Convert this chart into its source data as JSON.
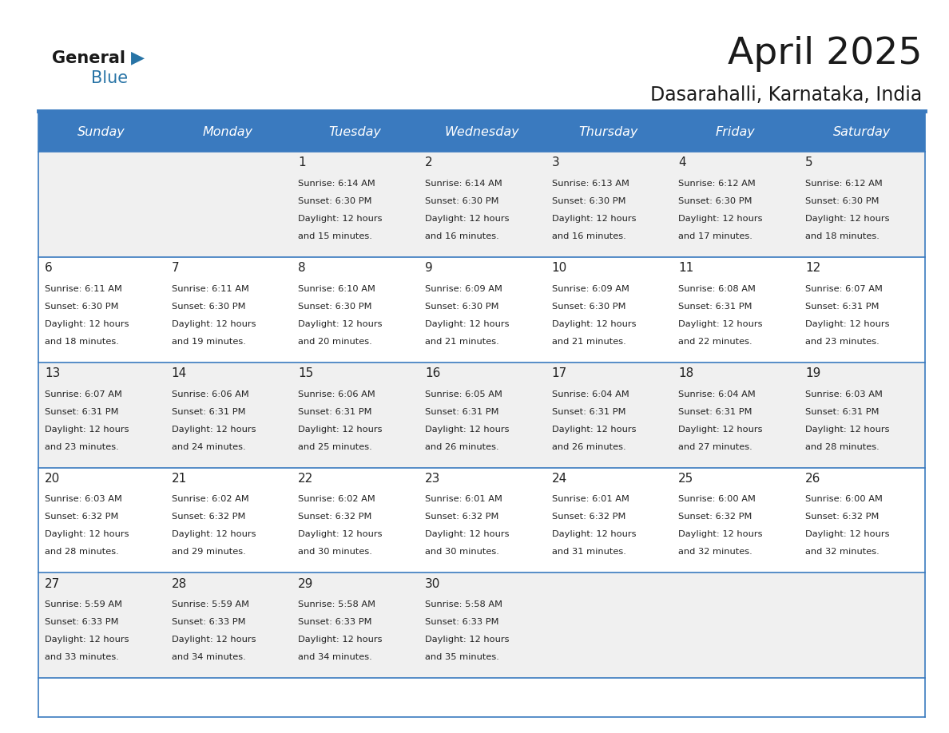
{
  "title": "April 2025",
  "subtitle": "Dasarahalli, Karnataka, India",
  "days_of_week": [
    "Sunday",
    "Monday",
    "Tuesday",
    "Wednesday",
    "Thursday",
    "Friday",
    "Saturday"
  ],
  "header_bg_color": "#3a7abf",
  "header_text_color": "#ffffff",
  "row_bg_even": "#f0f0f0",
  "row_bg_odd": "#ffffff",
  "cell_border_color": "#3a7abf",
  "text_color": "#222222",
  "title_color": "#1a1a1a",
  "subtitle_color": "#1a1a1a",
  "logo_black_color": "#1a1a1a",
  "logo_blue_color": "#2874a6",
  "calendar": [
    [
      {
        "day": "",
        "sunrise": "",
        "sunset": "",
        "daylight": ""
      },
      {
        "day": "",
        "sunrise": "",
        "sunset": "",
        "daylight": ""
      },
      {
        "day": "1",
        "sunrise": "6:14 AM",
        "sunset": "6:30 PM",
        "daylight": "12 hours and 15 minutes."
      },
      {
        "day": "2",
        "sunrise": "6:14 AM",
        "sunset": "6:30 PM",
        "daylight": "12 hours and 16 minutes."
      },
      {
        "day": "3",
        "sunrise": "6:13 AM",
        "sunset": "6:30 PM",
        "daylight": "12 hours and 16 minutes."
      },
      {
        "day": "4",
        "sunrise": "6:12 AM",
        "sunset": "6:30 PM",
        "daylight": "12 hours and 17 minutes."
      },
      {
        "day": "5",
        "sunrise": "6:12 AM",
        "sunset": "6:30 PM",
        "daylight": "12 hours and 18 minutes."
      }
    ],
    [
      {
        "day": "6",
        "sunrise": "6:11 AM",
        "sunset": "6:30 PM",
        "daylight": "12 hours and 18 minutes."
      },
      {
        "day": "7",
        "sunrise": "6:11 AM",
        "sunset": "6:30 PM",
        "daylight": "12 hours and 19 minutes."
      },
      {
        "day": "8",
        "sunrise": "6:10 AM",
        "sunset": "6:30 PM",
        "daylight": "12 hours and 20 minutes."
      },
      {
        "day": "9",
        "sunrise": "6:09 AM",
        "sunset": "6:30 PM",
        "daylight": "12 hours and 21 minutes."
      },
      {
        "day": "10",
        "sunrise": "6:09 AM",
        "sunset": "6:30 PM",
        "daylight": "12 hours and 21 minutes."
      },
      {
        "day": "11",
        "sunrise": "6:08 AM",
        "sunset": "6:31 PM",
        "daylight": "12 hours and 22 minutes."
      },
      {
        "day": "12",
        "sunrise": "6:07 AM",
        "sunset": "6:31 PM",
        "daylight": "12 hours and 23 minutes."
      }
    ],
    [
      {
        "day": "13",
        "sunrise": "6:07 AM",
        "sunset": "6:31 PM",
        "daylight": "12 hours and 23 minutes."
      },
      {
        "day": "14",
        "sunrise": "6:06 AM",
        "sunset": "6:31 PM",
        "daylight": "12 hours and 24 minutes."
      },
      {
        "day": "15",
        "sunrise": "6:06 AM",
        "sunset": "6:31 PM",
        "daylight": "12 hours and 25 minutes."
      },
      {
        "day": "16",
        "sunrise": "6:05 AM",
        "sunset": "6:31 PM",
        "daylight": "12 hours and 26 minutes."
      },
      {
        "day": "17",
        "sunrise": "6:04 AM",
        "sunset": "6:31 PM",
        "daylight": "12 hours and 26 minutes."
      },
      {
        "day": "18",
        "sunrise": "6:04 AM",
        "sunset": "6:31 PM",
        "daylight": "12 hours and 27 minutes."
      },
      {
        "day": "19",
        "sunrise": "6:03 AM",
        "sunset": "6:31 PM",
        "daylight": "12 hours and 28 minutes."
      }
    ],
    [
      {
        "day": "20",
        "sunrise": "6:03 AM",
        "sunset": "6:32 PM",
        "daylight": "12 hours and 28 minutes."
      },
      {
        "day": "21",
        "sunrise": "6:02 AM",
        "sunset": "6:32 PM",
        "daylight": "12 hours and 29 minutes."
      },
      {
        "day": "22",
        "sunrise": "6:02 AM",
        "sunset": "6:32 PM",
        "daylight": "12 hours and 30 minutes."
      },
      {
        "day": "23",
        "sunrise": "6:01 AM",
        "sunset": "6:32 PM",
        "daylight": "12 hours and 30 minutes."
      },
      {
        "day": "24",
        "sunrise": "6:01 AM",
        "sunset": "6:32 PM",
        "daylight": "12 hours and 31 minutes."
      },
      {
        "day": "25",
        "sunrise": "6:00 AM",
        "sunset": "6:32 PM",
        "daylight": "12 hours and 32 minutes."
      },
      {
        "day": "26",
        "sunrise": "6:00 AM",
        "sunset": "6:32 PM",
        "daylight": "12 hours and 32 minutes."
      }
    ],
    [
      {
        "day": "27",
        "sunrise": "5:59 AM",
        "sunset": "6:33 PM",
        "daylight": "12 hours and 33 minutes."
      },
      {
        "day": "28",
        "sunrise": "5:59 AM",
        "sunset": "6:33 PM",
        "daylight": "12 hours and 34 minutes."
      },
      {
        "day": "29",
        "sunrise": "5:58 AM",
        "sunset": "6:33 PM",
        "daylight": "12 hours and 34 minutes."
      },
      {
        "day": "30",
        "sunrise": "5:58 AM",
        "sunset": "6:33 PM",
        "daylight": "12 hours and 35 minutes."
      },
      {
        "day": "",
        "sunrise": "",
        "sunset": "",
        "daylight": ""
      },
      {
        "day": "",
        "sunrise": "",
        "sunset": "",
        "daylight": ""
      },
      {
        "day": "",
        "sunrise": "",
        "sunset": "",
        "daylight": ""
      }
    ]
  ]
}
